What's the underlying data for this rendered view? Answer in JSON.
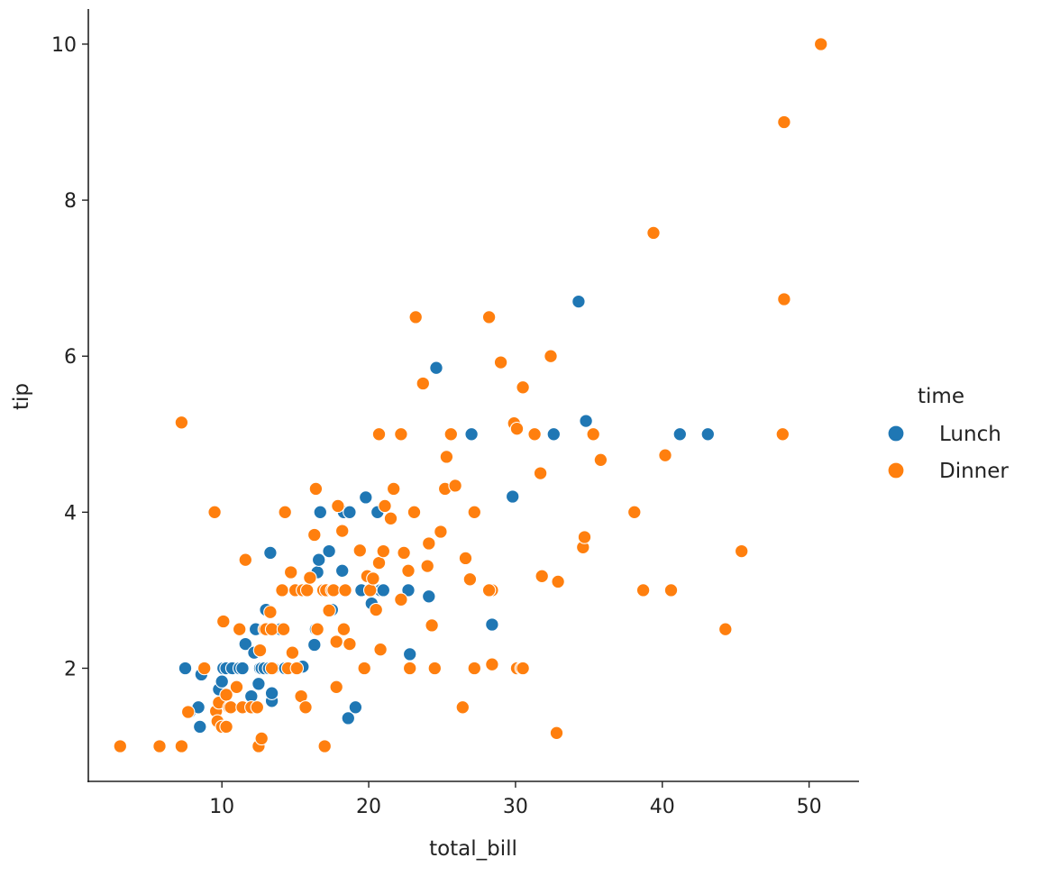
{
  "chart_data": {
    "type": "scatter",
    "xlabel": "total_bill",
    "ylabel": "tip",
    "xlim": [
      0.9,
      53.4
    ],
    "ylim": [
      0.55,
      10.45
    ],
    "xticks": [
      "10",
      "20",
      "30",
      "40",
      "50"
    ],
    "yticks": [
      "2",
      "4",
      "6",
      "8",
      "10"
    ],
    "grid": false,
    "legend": {
      "title": "time",
      "placement": "center-right",
      "entries": [
        "Lunch",
        "Dinner"
      ]
    },
    "colors": {
      "Lunch": "#1f77b4",
      "Dinner": "#ff7f0e"
    },
    "series": [
      {
        "name": "Lunch",
        "x": [
          7.5,
          7.8,
          8.4,
          8.5,
          8.6,
          9.8,
          10.0,
          10.1,
          10.3,
          10.7,
          11.2,
          11.4,
          11.6,
          12.0,
          12.2,
          12.3,
          12.5,
          12.6,
          12.7,
          12.9,
          13.0,
          13.2,
          13.3,
          13.4,
          13.4,
          13.5,
          14.0,
          14.3,
          15.5,
          16.3,
          16.4,
          16.5,
          16.6,
          16.7,
          17.3,
          17.5,
          18.2,
          18.3,
          18.6,
          18.7,
          19.1,
          19.5,
          19.8,
          20.2,
          20.6,
          20.8,
          21.0,
          22.7,
          22.8,
          24.1,
          24.6,
          27.0,
          28.4,
          29.8,
          32.6,
          34.3,
          34.8,
          41.2,
          43.1
        ],
        "y": [
          2.0,
          1.44,
          1.5,
          1.25,
          1.92,
          1.73,
          1.83,
          2.0,
          2.0,
          2.0,
          2.0,
          2.0,
          2.31,
          1.64,
          2.2,
          2.5,
          1.8,
          2.0,
          2.0,
          2.0,
          2.75,
          2.0,
          3.48,
          1.58,
          1.68,
          2.0,
          2.5,
          2.0,
          2.02,
          2.3,
          2.5,
          3.23,
          3.39,
          4.0,
          3.5,
          2.75,
          3.25,
          4.0,
          1.36,
          4.0,
          1.5,
          3.0,
          4.19,
          2.83,
          4.0,
          3.0,
          3.0,
          3.0,
          2.18,
          2.92,
          5.85,
          5.0,
          2.56,
          4.2,
          5.0,
          6.7,
          5.17,
          5.0,
          5.0
        ]
      },
      {
        "name": "Dinner",
        "x": [
          3.07,
          5.75,
          7.25,
          7.25,
          7.7,
          8.8,
          9.5,
          9.6,
          9.7,
          9.8,
          10.0,
          10.1,
          10.3,
          10.3,
          10.5,
          10.6,
          11.0,
          11.2,
          11.4,
          11.6,
          12.0,
          12.4,
          12.5,
          12.6,
          12.7,
          12.9,
          13.0,
          13.3,
          13.4,
          13.4,
          14.1,
          14.2,
          14.3,
          14.5,
          14.7,
          14.8,
          15.0,
          15.1,
          15.4,
          15.5,
          15.7,
          15.8,
          16.0,
          16.3,
          16.4,
          16.5,
          16.9,
          17.0,
          17.1,
          17.3,
          17.5,
          17.6,
          17.8,
          17.8,
          17.9,
          18.2,
          18.3,
          18.4,
          18.7,
          19.4,
          19.7,
          19.9,
          20.1,
          20.3,
          20.5,
          20.7,
          20.7,
          20.8,
          21.0,
          21.1,
          21.5,
          21.7,
          22.2,
          22.2,
          22.4,
          22.7,
          22.8,
          23.1,
          23.2,
          23.7,
          24.0,
          24.1,
          24.3,
          24.5,
          24.9,
          25.2,
          25.3,
          25.6,
          25.9,
          26.4,
          26.6,
          26.9,
          27.2,
          28.2,
          28.4,
          29.0,
          29.9,
          30.1,
          30.5,
          30.4,
          31.3,
          31.7,
          31.8,
          32.4,
          32.8,
          32.9,
          34.6,
          34.7,
          35.3,
          35.8,
          38.1,
          38.7,
          40.2,
          40.6,
          44.3,
          45.4,
          48.2,
          48.3,
          48.3,
          50.8,
          39.4,
          30.1,
          27.2,
          28.2,
          28.4,
          30.5
        ],
        "y": [
          1.0,
          1.0,
          1.0,
          5.15,
          1.44,
          2.0,
          4.0,
          1.45,
          1.32,
          1.56,
          1.25,
          2.6,
          1.66,
          1.25,
          1.5,
          1.5,
          1.76,
          2.5,
          1.5,
          3.39,
          1.5,
          1.5,
          1.0,
          2.23,
          1.1,
          2.5,
          2.5,
          2.72,
          2.5,
          2.0,
          3.0,
          2.5,
          4.0,
          2.0,
          3.23,
          2.2,
          3.0,
          2.0,
          1.64,
          3.0,
          1.5,
          3.0,
          3.16,
          3.71,
          4.3,
          2.5,
          3.0,
          1.0,
          3.0,
          2.74,
          3.0,
          3.0,
          2.34,
          1.76,
          4.08,
          3.76,
          2.5,
          3.0,
          2.31,
          3.51,
          2.0,
          3.18,
          3.0,
          3.15,
          2.75,
          3.35,
          5.0,
          2.24,
          3.5,
          4.08,
          3.92,
          4.3,
          2.88,
          5.0,
          3.48,
          3.25,
          2.0,
          4.0,
          6.5,
          5.65,
          3.31,
          3.6,
          2.55,
          2.0,
          3.75,
          4.3,
          4.71,
          5.0,
          4.34,
          1.5,
          3.41,
          3.14,
          4.0,
          6.5,
          3.0,
          5.92,
          5.14,
          2.0,
          5.6,
          2.0,
          5.0,
          4.5,
          3.18,
          6.0,
          1.17,
          3.11,
          3.55,
          3.68,
          5.0,
          4.67,
          4.0,
          3.0,
          4.73,
          3.0,
          2.5,
          3.5,
          5.0,
          9.0,
          6.73,
          10.0,
          7.58,
          5.07,
          2.0,
          3.0,
          2.05,
          2.0
        ]
      }
    ]
  }
}
